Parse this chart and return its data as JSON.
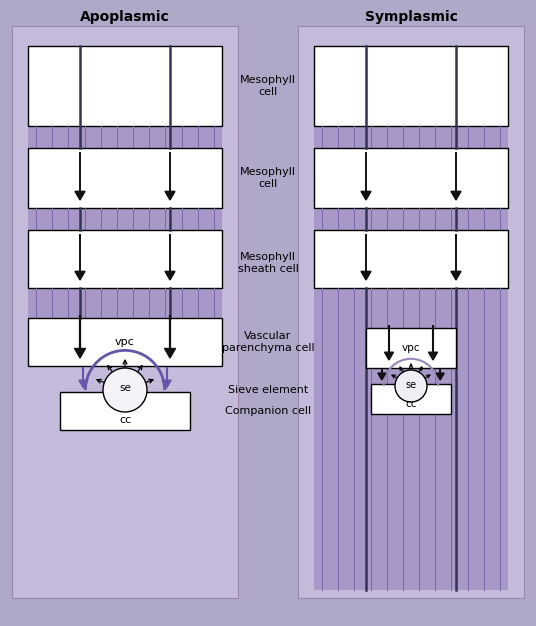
{
  "bg_color": "#b0a8c8",
  "panel_bg": "#c4bbda",
  "cell_fill": "#ffffff",
  "cell_edge": "#000000",
  "plasm_color": "#a898c8",
  "plasm_line": "#7766aa",
  "arrow_black": "#111111",
  "arrow_purple": "#6655aa",
  "title_left": "Apoplasmic",
  "title_right": "Symplasmic",
  "label_meso1": "Mesophyll\ncell",
  "label_meso2": "Mesophyll\ncell",
  "label_sheath": "Mesophyll\nsheath cell",
  "label_vascular": "Vascular\nparenchyma cell",
  "label_sieve": "Sieve element",
  "label_companion": "Companion cell",
  "fig_w": 5.36,
  "fig_h": 6.26,
  "dpi": 100
}
